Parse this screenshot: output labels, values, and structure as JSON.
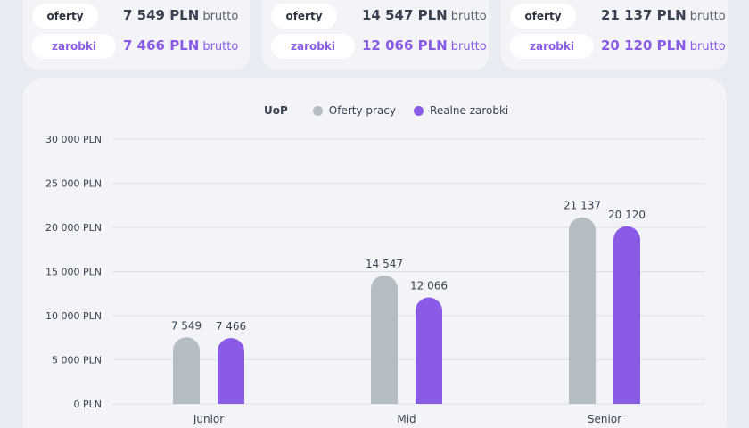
{
  "summary_cards": [
    {
      "offer_label": "oferty",
      "offer_value": "7 549 PLN",
      "offer_unit": "brutto",
      "earn_label": "zarobki",
      "earn_value": "7 466 PLN",
      "earn_unit": "brutto"
    },
    {
      "offer_label": "oferty",
      "offer_value": "14 547 PLN",
      "offer_unit": "brutto",
      "earn_label": "zarobki",
      "earn_value": "12 066 PLN",
      "earn_unit": "brutto"
    },
    {
      "offer_label": "oferty",
      "offer_value": "21 137 PLN",
      "offer_unit": "brutto",
      "earn_label": "zarobki",
      "earn_value": "20 120 PLN",
      "earn_unit": "brutto"
    }
  ],
  "colors": {
    "offers": "#b4bcc4",
    "earnings": "#8a5ce6"
  },
  "chart_data": {
    "type": "bar",
    "legend_title": "UoP",
    "legend_placement": "top-center",
    "categories": [
      "Junior",
      "Mid",
      "Senior"
    ],
    "series": [
      {
        "name": "Oferty pracy",
        "values": [
          7549,
          14547,
          21137
        ],
        "labels": [
          "7 549",
          "14 547",
          "21 137"
        ]
      },
      {
        "name": "Realne zarobki",
        "values": [
          7466,
          12066,
          20120
        ],
        "labels": [
          "7 466",
          "12 066",
          "20 120"
        ]
      }
    ],
    "ylim": [
      0,
      30000
    ],
    "yticks": [
      0,
      5000,
      10000,
      15000,
      20000,
      25000,
      30000
    ],
    "ytick_labels": [
      "0 PLN",
      "5 000 PLN",
      "10 000 PLN",
      "15 000 PLN",
      "20 000 PLN",
      "25 000 PLN",
      "30 000 PLN"
    ],
    "grid": true
  }
}
